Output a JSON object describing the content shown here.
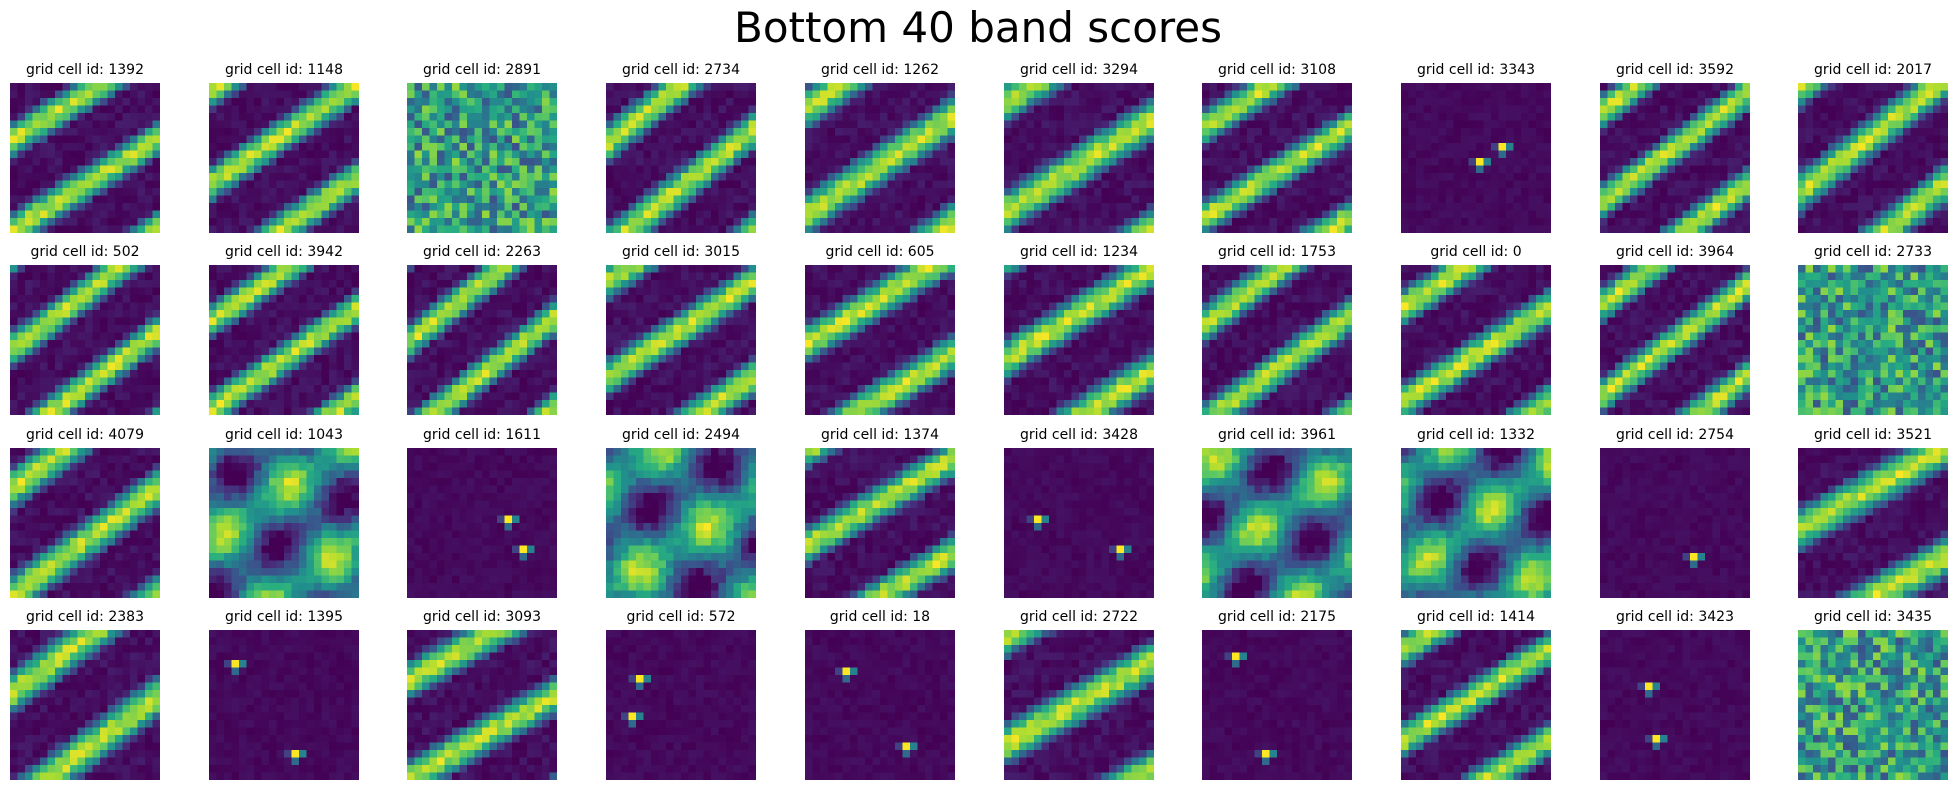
{
  "chart_data": {
    "type": "heatmap",
    "title": "Bottom 40 band scores",
    "panel_title_prefix": "grid cell id: ",
    "colormap": "viridis",
    "grid": false,
    "axes_visible": false,
    "panels_per_row": 10,
    "rows": 4,
    "cells_per_side": 20,
    "panels": [
      {
        "cell_id": 1392,
        "pattern": "band",
        "title": "grid cell id: 1392"
      },
      {
        "cell_id": 1148,
        "pattern": "band",
        "title": "grid cell id: 1148"
      },
      {
        "cell_id": 2891,
        "pattern": "noise",
        "title": "grid cell id: 2891"
      },
      {
        "cell_id": 2734,
        "pattern": "band",
        "title": "grid cell id: 2734"
      },
      {
        "cell_id": 1262,
        "pattern": "band",
        "title": "grid cell id: 1262"
      },
      {
        "cell_id": 3294,
        "pattern": "band",
        "title": "grid cell id: 3294"
      },
      {
        "cell_id": 3108,
        "pattern": "band",
        "title": "grid cell id: 3108"
      },
      {
        "cell_id": 3343,
        "pattern": "spot",
        "title": "grid cell id: 3343"
      },
      {
        "cell_id": 3592,
        "pattern": "band",
        "title": "grid cell id: 3592"
      },
      {
        "cell_id": 2017,
        "pattern": "band",
        "title": "grid cell id: 2017"
      },
      {
        "cell_id": 502,
        "pattern": "band",
        "title": "grid cell id: 502"
      },
      {
        "cell_id": 3942,
        "pattern": "band",
        "title": "grid cell id: 3942"
      },
      {
        "cell_id": 2263,
        "pattern": "band",
        "title": "grid cell id: 2263"
      },
      {
        "cell_id": 3015,
        "pattern": "band",
        "title": "grid cell id: 3015"
      },
      {
        "cell_id": 605,
        "pattern": "band",
        "title": "grid cell id: 605"
      },
      {
        "cell_id": 1234,
        "pattern": "band",
        "title": "grid cell id: 1234"
      },
      {
        "cell_id": 1753,
        "pattern": "band",
        "title": "grid cell id: 1753"
      },
      {
        "cell_id": 0,
        "pattern": "band",
        "title": "grid cell id: 0"
      },
      {
        "cell_id": 3964,
        "pattern": "band",
        "title": "grid cell id: 3964"
      },
      {
        "cell_id": 2733,
        "pattern": "noise",
        "title": "grid cell id: 2733"
      },
      {
        "cell_id": 4079,
        "pattern": "band",
        "title": "grid cell id: 4079"
      },
      {
        "cell_id": 1043,
        "pattern": "mixed",
        "title": "grid cell id: 1043"
      },
      {
        "cell_id": 1611,
        "pattern": "spot",
        "title": "grid cell id: 1611"
      },
      {
        "cell_id": 2494,
        "pattern": "mixed",
        "title": "grid cell id: 2494"
      },
      {
        "cell_id": 1374,
        "pattern": "band",
        "title": "grid cell id: 1374"
      },
      {
        "cell_id": 3428,
        "pattern": "spot",
        "title": "grid cell id: 3428"
      },
      {
        "cell_id": 3961,
        "pattern": "mixed",
        "title": "grid cell id: 3961"
      },
      {
        "cell_id": 1332,
        "pattern": "mixed",
        "title": "grid cell id: 1332"
      },
      {
        "cell_id": 2754,
        "pattern": "spot",
        "title": "grid cell id: 2754"
      },
      {
        "cell_id": 3521,
        "pattern": "band",
        "title": "grid cell id: 3521"
      },
      {
        "cell_id": 2383,
        "pattern": "band",
        "title": "grid cell id: 2383"
      },
      {
        "cell_id": 1395,
        "pattern": "spot",
        "title": "grid cell id: 1395"
      },
      {
        "cell_id": 3093,
        "pattern": "band",
        "title": "grid cell id: 3093"
      },
      {
        "cell_id": 572,
        "pattern": "spot",
        "title": "grid cell id: 572"
      },
      {
        "cell_id": 18,
        "pattern": "spot",
        "title": "grid cell id: 18"
      },
      {
        "cell_id": 2722,
        "pattern": "band",
        "title": "grid cell id: 2722"
      },
      {
        "cell_id": 2175,
        "pattern": "spot",
        "title": "grid cell id: 2175"
      },
      {
        "cell_id": 1414,
        "pattern": "band",
        "title": "grid cell id: 1414"
      },
      {
        "cell_id": 3423,
        "pattern": "spot",
        "title": "grid cell id: 3423"
      },
      {
        "cell_id": 3435,
        "pattern": "noise",
        "title": "grid cell id: 3435"
      }
    ]
  }
}
